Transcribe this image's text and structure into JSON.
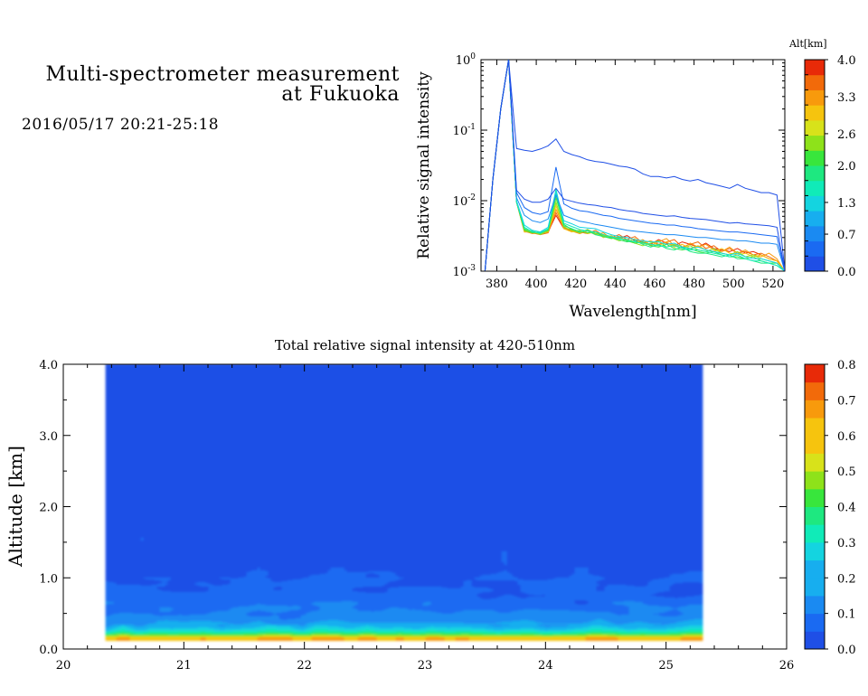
{
  "header": {
    "title_line1": "Multi-spectrometer measurement",
    "title_line2": "at Fukuoka",
    "date": "2016/05/17 20:21-25:18"
  },
  "colors": {
    "scale": [
      "#1F4FE6",
      "#1A6AF2",
      "#1A8AF2",
      "#17AEEF",
      "#14D4E0",
      "#10EBB8",
      "#1EE880",
      "#38E63C",
      "#8EE21A",
      "#D8E21A",
      "#F6C40E",
      "#F89A0C",
      "#F26A0A",
      "#E82A08"
    ]
  },
  "chart_data": [
    {
      "type": "line",
      "xlabel": "Wavelength[nm]",
      "ylabel": "Relative signal intensity",
      "y_scale": "log",
      "xlim": [
        372,
        526
      ],
      "ylim": [
        0.001,
        1
      ],
      "x_ticks": [
        "380",
        "400",
        "420",
        "440",
        "460",
        "480",
        "500",
        "520"
      ],
      "y_ticks": [
        "10^-3",
        "10^-2",
        "10^-1",
        "10^0"
      ],
      "colorbar": {
        "label": "Alt[km]",
        "ticks": [
          "0.0",
          "0.7",
          "1.3",
          "2.0",
          "2.6",
          "3.3",
          "4.0"
        ],
        "range": [
          0,
          4
        ]
      },
      "x": [
        374,
        378,
        382,
        386,
        390,
        394,
        398,
        402,
        406,
        410,
        414,
        418,
        422,
        426,
        430,
        434,
        438,
        442,
        446,
        450,
        454,
        458,
        462,
        466,
        470,
        474,
        478,
        482,
        486,
        490,
        494,
        498,
        502,
        506,
        510,
        514,
        518,
        522,
        526
      ],
      "series": [
        {
          "altitude": 0.0,
          "values": [
            0.001,
            0.02,
            0.2,
            1.0,
            0.055,
            0.052,
            0.05,
            0.054,
            0.06,
            0.075,
            0.05,
            0.045,
            0.042,
            0.038,
            0.036,
            0.035,
            0.033,
            0.031,
            0.03,
            0.028,
            0.024,
            0.022,
            0.022,
            0.021,
            0.022,
            0.02,
            0.019,
            0.02,
            0.018,
            0.017,
            0.016,
            0.015,
            0.017,
            0.015,
            0.014,
            0.013,
            0.013,
            0.012,
            0.001
          ]
        },
        {
          "altitude": 0.2,
          "values": [
            0.001,
            0.02,
            0.2,
            1.0,
            0.014,
            0.0105,
            0.0095,
            0.0095,
            0.0105,
            0.015,
            0.0105,
            0.0098,
            0.0092,
            0.0088,
            0.0086,
            0.0082,
            0.008,
            0.0075,
            0.0072,
            0.007,
            0.0066,
            0.0064,
            0.0062,
            0.006,
            0.0061,
            0.0058,
            0.0056,
            0.0055,
            0.0054,
            0.0052,
            0.005,
            0.0048,
            0.0049,
            0.0047,
            0.0046,
            0.0045,
            0.0044,
            0.0042,
            0.001
          ]
        },
        {
          "altitude": 0.45,
          "values": [
            0.001,
            0.02,
            0.2,
            1.0,
            0.013,
            0.008,
            0.0068,
            0.0064,
            0.007,
            0.03,
            0.009,
            0.0078,
            0.0072,
            0.007,
            0.0066,
            0.0062,
            0.006,
            0.0056,
            0.0054,
            0.0052,
            0.005,
            0.0048,
            0.0047,
            0.0045,
            0.0045,
            0.0043,
            0.0042,
            0.004,
            0.0039,
            0.0038,
            0.0037,
            0.0036,
            0.0036,
            0.0035,
            0.0034,
            0.0033,
            0.0032,
            0.0031,
            0.001
          ]
        },
        {
          "altitude": 0.8,
          "values": [
            0.001,
            0.02,
            0.2,
            1.0,
            0.011,
            0.0062,
            0.0052,
            0.0049,
            0.0055,
            0.012,
            0.0062,
            0.0056,
            0.0051,
            0.0049,
            0.0046,
            0.0044,
            0.0042,
            0.004,
            0.0038,
            0.0037,
            0.0036,
            0.0035,
            0.0034,
            0.0033,
            0.0033,
            0.0032,
            0.0031,
            0.003,
            0.003,
            0.0029,
            0.0028,
            0.0028,
            0.0027,
            0.0027,
            0.0026,
            0.0025,
            0.0025,
            0.0024,
            0.001
          ]
        },
        {
          "altitude": 1.2,
          "values": [
            0.001,
            0.02,
            0.2,
            1.0,
            0.01,
            0.0045,
            0.0038,
            0.0036,
            0.0042,
            0.0135,
            0.0052,
            0.0047,
            0.0042,
            0.0041,
            0.004,
            0.0036,
            0.0033,
            0.0031,
            0.003,
            0.0028,
            0.0027,
            0.0026,
            0.0026,
            0.0024,
            0.0025,
            0.0022,
            0.0021,
            0.0022,
            0.002,
            0.0019,
            0.0018,
            0.0017,
            0.0018,
            0.0016,
            0.0015,
            0.0015,
            0.0014,
            0.0013,
            0.001
          ]
        },
        {
          "altitude": 1.5,
          "values": [
            0.001,
            0.02,
            0.2,
            1.0,
            0.0095,
            0.0042,
            0.0036,
            0.0035,
            0.004,
            0.0145,
            0.0048,
            0.0043,
            0.0039,
            0.0037,
            0.0036,
            0.0033,
            0.0031,
            0.0029,
            0.0028,
            0.0026,
            0.0025,
            0.0024,
            0.0023,
            0.0022,
            0.0023,
            0.0021,
            0.002,
            0.002,
            0.0019,
            0.0018,
            0.0017,
            0.0016,
            0.0017,
            0.0015,
            0.0014,
            0.0014,
            0.0013,
            0.0012,
            0.001
          ]
        },
        {
          "altitude": 1.8,
          "values": [
            0.001,
            0.02,
            0.2,
            1.0,
            0.0095,
            0.004,
            0.0037,
            0.0034,
            0.0039,
            0.0125,
            0.0044,
            0.004,
            0.0036,
            0.0038,
            0.0033,
            0.0031,
            0.003,
            0.0028,
            0.0026,
            0.0027,
            0.0024,
            0.0022,
            0.0024,
            0.0021,
            0.002,
            0.0022,
            0.0019,
            0.0018,
            0.0018,
            0.0017,
            0.0016,
            0.0017,
            0.0015,
            0.0015,
            0.0014,
            0.0013,
            0.0013,
            0.0012,
            0.001
          ]
        },
        {
          "altitude": 2.1,
          "values": [
            0.001,
            0.02,
            0.2,
            1.0,
            0.0095,
            0.0038,
            0.0035,
            0.0036,
            0.0038,
            0.011,
            0.0046,
            0.0039,
            0.0037,
            0.0035,
            0.0036,
            0.0031,
            0.0029,
            0.003,
            0.0027,
            0.0025,
            0.0026,
            0.0023,
            0.0022,
            0.0024,
            0.0021,
            0.002,
            0.0021,
            0.0019,
            0.0018,
            0.0019,
            0.0017,
            0.0016,
            0.0016,
            0.0015,
            0.0016,
            0.0014,
            0.0013,
            0.0013,
            0.001
          ]
        },
        {
          "altitude": 2.5,
          "values": [
            0.001,
            0.02,
            0.2,
            1.0,
            0.0095,
            0.0039,
            0.0036,
            0.0033,
            0.0037,
            0.0095,
            0.0042,
            0.0038,
            0.0035,
            0.0039,
            0.0034,
            0.0032,
            0.003,
            0.0027,
            0.0028,
            0.0025,
            0.0023,
            0.0025,
            0.0027,
            0.0022,
            0.0024,
            0.0021,
            0.0023,
            0.002,
            0.0019,
            0.0021,
            0.0018,
            0.0017,
            0.0019,
            0.0016,
            0.0017,
            0.0015,
            0.0014,
            0.0013,
            0.001
          ]
        },
        {
          "altitude": 2.9,
          "values": [
            0.001,
            0.02,
            0.2,
            1.0,
            0.0095,
            0.0036,
            0.0037,
            0.0034,
            0.0036,
            0.0085,
            0.004,
            0.0036,
            0.0038,
            0.0034,
            0.0036,
            0.003,
            0.0032,
            0.0028,
            0.0026,
            0.0029,
            0.0024,
            0.0027,
            0.0023,
            0.0026,
            0.0022,
            0.0024,
            0.0021,
            0.0023,
            0.002,
            0.0019,
            0.0021,
            0.0018,
            0.0017,
            0.0018,
            0.0016,
            0.0017,
            0.0015,
            0.0014,
            0.001
          ]
        },
        {
          "altitude": 3.3,
          "values": [
            0.001,
            0.02,
            0.2,
            1.0,
            0.0095,
            0.0037,
            0.0034,
            0.0035,
            0.0037,
            0.0075,
            0.0043,
            0.0037,
            0.0034,
            0.0037,
            0.0033,
            0.0035,
            0.0029,
            0.0031,
            0.0027,
            0.0025,
            0.0028,
            0.0023,
            0.0026,
            0.0029,
            0.0023,
            0.0021,
            0.0025,
            0.0022,
            0.0024,
            0.002,
            0.0019,
            0.0022,
            0.0018,
            0.002,
            0.0017,
            0.0016,
            0.0018,
            0.0015,
            0.001
          ]
        },
        {
          "altitude": 3.7,
          "values": [
            0.001,
            0.02,
            0.2,
            1.0,
            0.0095,
            0.0038,
            0.0035,
            0.0033,
            0.0035,
            0.0068,
            0.0041,
            0.0039,
            0.0036,
            0.0034,
            0.0038,
            0.0032,
            0.003,
            0.0033,
            0.0028,
            0.0031,
            0.0025,
            0.0027,
            0.0024,
            0.0026,
            0.0028,
            0.0022,
            0.0024,
            0.0026,
            0.0021,
            0.0023,
            0.0019,
            0.0021,
            0.0018,
            0.0019,
            0.0017,
            0.0018,
            0.0016,
            0.0014,
            0.001
          ]
        },
        {
          "altitude": 4.0,
          "values": [
            0.001,
            0.02,
            0.2,
            1.0,
            0.0095,
            0.0036,
            0.0036,
            0.0034,
            0.0036,
            0.0062,
            0.004,
            0.0037,
            0.0035,
            0.0039,
            0.0034,
            0.0033,
            0.0031,
            0.0029,
            0.0032,
            0.0027,
            0.0026,
            0.0024,
            0.0028,
            0.0025,
            0.0023,
            0.0026,
            0.0024,
            0.0022,
            0.0025,
            0.0021,
            0.002,
            0.0019,
            0.0021,
            0.0018,
            0.0019,
            0.0017,
            0.0015,
            0.0014,
            0.001
          ]
        }
      ]
    },
    {
      "type": "heatmap",
      "title": "Total relative signal intensity at 420-510nm",
      "ylabel": "Altitude [km]",
      "xlim": [
        20,
        26
      ],
      "ylim": [
        0,
        4
      ],
      "data_x_range": [
        20.35,
        25.3
      ],
      "x_ticks": [
        "20",
        "21",
        "22",
        "23",
        "24",
        "25",
        "26"
      ],
      "y_ticks": [
        "0.0",
        "1.0",
        "2.0",
        "3.0",
        "4.0"
      ],
      "colorbar": {
        "range": [
          0,
          0.8
        ],
        "ticks": [
          "0.0",
          "0.1",
          "0.2",
          "0.3",
          "0.4",
          "0.5",
          "0.6",
          "0.7",
          "0.8"
        ]
      },
      "altitude_profile": [
        {
          "alt": 0.16,
          "value": 0.62
        },
        {
          "alt": 0.19,
          "value": 0.47
        },
        {
          "alt": 0.22,
          "value": 0.38
        },
        {
          "alt": 0.26,
          "value": 0.27
        },
        {
          "alt": 0.32,
          "value": 0.2
        },
        {
          "alt": 0.4,
          "value": 0.15
        },
        {
          "alt": 0.55,
          "value": 0.1
        },
        {
          "alt": 0.75,
          "value": 0.07
        },
        {
          "alt": 1.0,
          "value": 0.045
        },
        {
          "alt": 2.0,
          "value": 0.03
        },
        {
          "alt": 4.0,
          "value": 0.03
        }
      ]
    }
  ]
}
